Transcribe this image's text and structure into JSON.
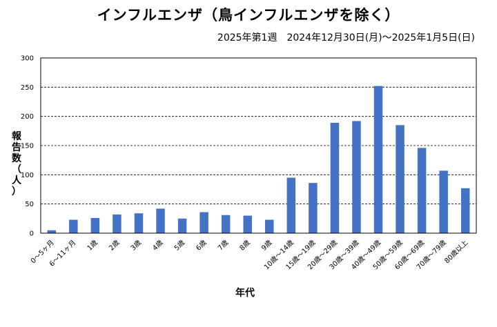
{
  "chart_data": {
    "type": "bar",
    "title": "インフルエンザ（鳥インフルエンザを除く）",
    "subtitle": "2025年第1週　2024年12月30日(月)～2025年1月5日(日)",
    "xlabel": "年代",
    "ylabel_chars": [
      "報",
      "告",
      "数",
      "（",
      "人",
      "）"
    ],
    "ylim": [
      0,
      300
    ],
    "yticks": [
      0,
      50,
      100,
      150,
      200,
      250,
      300
    ],
    "grid": "horizontal dashed",
    "legend": "none",
    "bar_color": "#4472C4",
    "categories": [
      "0～5ヶ月",
      "6～11ヶ月",
      "1歳",
      "2歳",
      "3歳",
      "4歳",
      "5歳",
      "6歳",
      "7歳",
      "8歳",
      "9歳",
      "10歳～14歳",
      "15歳～19歳",
      "20歳～29歳",
      "30歳～39歳",
      "40歳～49歳",
      "50歳～59歳",
      "60歳～69歳",
      "70歳～79歳",
      "80歳以上"
    ],
    "values": [
      5,
      23,
      26,
      32,
      34,
      42,
      25,
      36,
      31,
      30,
      23,
      95,
      86,
      189,
      192,
      252,
      185,
      146,
      107,
      77
    ]
  }
}
